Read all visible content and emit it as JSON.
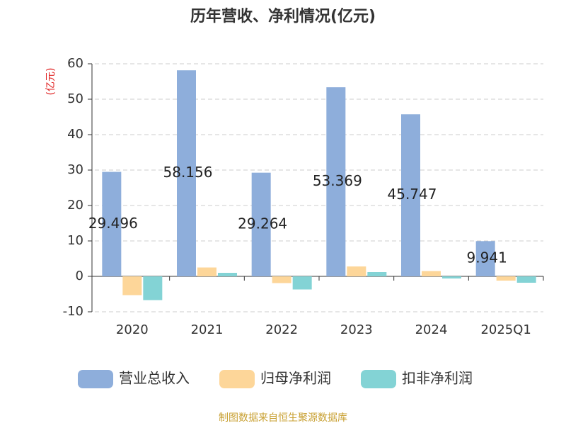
{
  "chart_data": {
    "type": "bar",
    "title": "历年营收、净利情况(亿元)",
    "y_label": "(亿元)",
    "categories": [
      "2020",
      "2021",
      "2022",
      "2023",
      "2024",
      "2025Q1"
    ],
    "series": [
      {
        "name": "营业总收入",
        "color": "#8eaedb",
        "values": [
          29.496,
          58.156,
          29.264,
          53.369,
          45.747,
          9.941
        ]
      },
      {
        "name": "归母净利润",
        "color": "#fdd699",
        "values": [
          -5.3,
          2.5,
          -1.9,
          2.8,
          1.5,
          -1.2
        ]
      },
      {
        "name": "扣非净利润",
        "color": "#83d3d5",
        "values": [
          -6.7,
          1.0,
          -3.7,
          1.2,
          -0.6,
          -1.8
        ]
      }
    ],
    "ylim": [
      -10,
      60
    ],
    "yticks": [
      -10,
      0,
      10,
      20,
      30,
      40,
      50,
      60
    ],
    "grid": true,
    "source": "制图数据来自恒生聚源数据库"
  }
}
